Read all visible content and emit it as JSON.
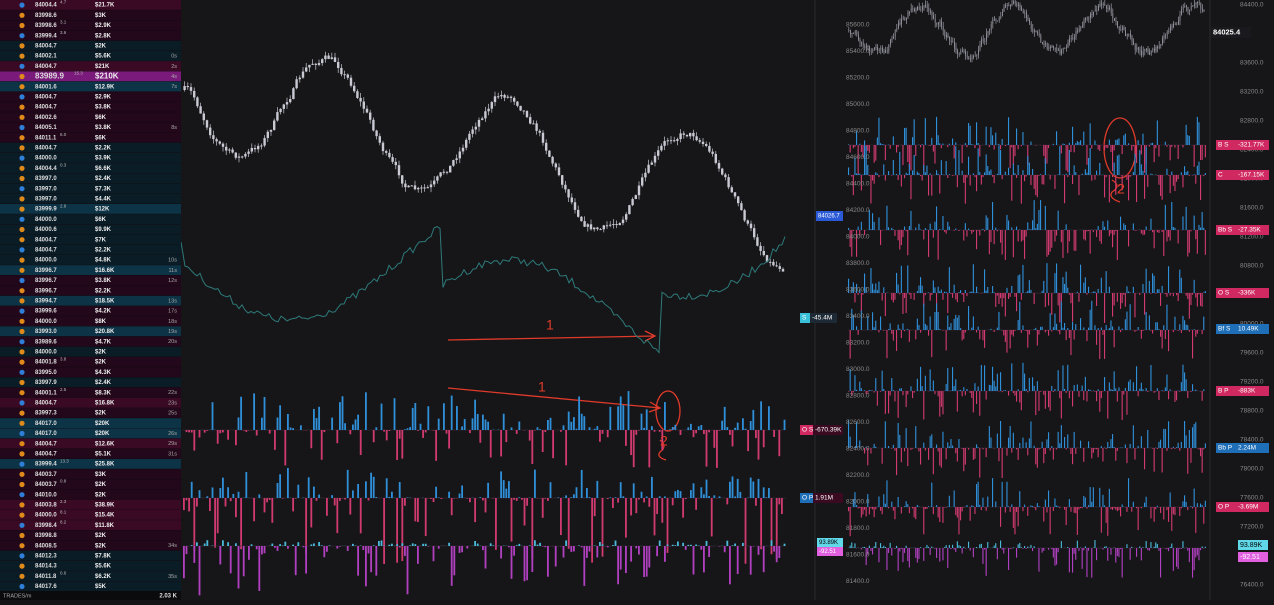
{
  "trades": {
    "rows": [
      [
        "84004.4",
        "4.7",
        "$21.7K",
        null,
        "#3a0a24"
      ],
      [
        "83998.6",
        null,
        "$3K",
        null,
        "#22081a"
      ],
      [
        "83998.6",
        "3.1",
        "$2.9K",
        null,
        "#22081a"
      ],
      [
        "83999.4",
        "3.6",
        "$2.8K",
        null,
        "#22081a"
      ],
      [
        "84004.7",
        null,
        "$2K",
        null,
        "#0a1c26"
      ],
      [
        "84002.1",
        null,
        "$5.6K",
        "0s",
        "#0a1c26"
      ],
      [
        "84004.7",
        null,
        "$21K",
        "2s",
        "#3a0a24"
      ],
      [
        "83989.9",
        "15.3",
        "$210K",
        "4s",
        "#7a1a7a"
      ],
      [
        "84001.6",
        null,
        "$12.9K",
        "7s",
        "#0c3346"
      ],
      [
        "84004.7",
        null,
        "$2.9K",
        null,
        "#22081a"
      ],
      [
        "84004.7",
        null,
        "$3.8K",
        null,
        "#22081a"
      ],
      [
        "84002.6",
        null,
        "$6K",
        null,
        "#22081a"
      ],
      [
        "84005.1",
        null,
        "$3.8K",
        "8s",
        "#22081a"
      ],
      [
        "84011.1",
        "6.0",
        "$6K",
        null,
        "#22081a"
      ],
      [
        "84004.7",
        null,
        "$2.2K",
        null,
        "#0a1c26"
      ],
      [
        "84000.0",
        null,
        "$3.9K",
        null,
        "#0a1c26"
      ],
      [
        "84004.4",
        "0.3",
        "$6.6K",
        null,
        "#0a1c26"
      ],
      [
        "83997.0",
        null,
        "$2.4K",
        null,
        "#0a1c26"
      ],
      [
        "83997.0",
        null,
        "$7.3K",
        null,
        "#0a1c26"
      ],
      [
        "83997.0",
        null,
        "$4.4K",
        null,
        "#0a1c26"
      ],
      [
        "83999.9",
        "2.9",
        "$12K",
        null,
        "#0c3346"
      ],
      [
        "84000.0",
        null,
        "$6K",
        null,
        "#0a1c26"
      ],
      [
        "84000.6",
        null,
        "$9.9K",
        null,
        "#0a1c26"
      ],
      [
        "84004.7",
        null,
        "$7K",
        null,
        "#0a1c26"
      ],
      [
        "84004.7",
        null,
        "$2.2K",
        null,
        "#0a1c26"
      ],
      [
        "84000.0",
        null,
        "$4.8K",
        "10s",
        "#0a1c26"
      ],
      [
        "83996.7",
        null,
        "$16.6K",
        "11s",
        "#0c3346"
      ],
      [
        "83996.7",
        null,
        "$3.8K",
        "12s",
        "#22081a"
      ],
      [
        "83996.7",
        null,
        "$2.2K",
        null,
        "#22081a"
      ],
      [
        "83994.7",
        null,
        "$18.5K",
        "13s",
        "#0c3346"
      ],
      [
        "83999.6",
        null,
        "$4.2K",
        "17s",
        "#22081a"
      ],
      [
        "84000.0",
        null,
        "$8K",
        "18s",
        "#22081a"
      ],
      [
        "83993.0",
        null,
        "$20.8K",
        "19s",
        "#0c3346"
      ],
      [
        "83989.6",
        null,
        "$4.7K",
        "20s",
        "#22081a"
      ],
      [
        "84000.0",
        null,
        "$2K",
        null,
        "#0a1c26"
      ],
      [
        "84001.8",
        "3.8",
        "$2K",
        null,
        "#22081a"
      ],
      [
        "83995.0",
        null,
        "$4.3K",
        null,
        "#22081a"
      ],
      [
        "83997.9",
        null,
        "$2.4K",
        null,
        "#0a1c26"
      ],
      [
        "84001.1",
        "2.5",
        "$8.3K",
        "22s",
        "#22081a"
      ],
      [
        "84004.7",
        null,
        "$16.8K",
        "23s",
        "#3a0a24"
      ],
      [
        "83997.3",
        null,
        "$2K",
        "25s",
        "#22081a"
      ],
      [
        "84017.0",
        null,
        "$20K",
        null,
        "#0c3346"
      ],
      [
        "84017.0",
        null,
        "$20K",
        "26s",
        "#0c3346"
      ],
      [
        "84004.7",
        null,
        "$12.6K",
        "29s",
        "#3a0a24"
      ],
      [
        "84004.7",
        null,
        "$5.1K",
        "31s",
        "#22081a"
      ],
      [
        "83999.4",
        "13.3",
        "$25.8K",
        null,
        "#0c3346"
      ],
      [
        "84003.7",
        null,
        "$3K",
        null,
        "#22081a"
      ],
      [
        "84003.7",
        "0.8",
        "$2K",
        null,
        "#22081a"
      ],
      [
        "84010.0",
        null,
        "$2K",
        null,
        "#22081a"
      ],
      [
        "84003.8",
        "2.3",
        "$38.9K",
        null,
        "#3a0a24"
      ],
      [
        "84000.0",
        "8.1",
        "$15.4K",
        null,
        "#3a0a24"
      ],
      [
        "83998.4",
        "8.2",
        "$11.8K",
        null,
        "#3a0a24"
      ],
      [
        "83998.8",
        null,
        "$2K",
        null,
        "#22081a"
      ],
      [
        "84008.5",
        null,
        "$2K",
        "34s",
        "#22081a"
      ],
      [
        "84012.3",
        null,
        "$7.8K",
        null,
        "#0a1c26"
      ],
      [
        "84014.3",
        null,
        "$5.6K",
        null,
        "#0a1c26"
      ],
      [
        "84011.8",
        "0.6",
        "$6.2K",
        "35s",
        "#0a1c26"
      ],
      [
        "84017.6",
        null,
        "$5K",
        null,
        "#0a1c26"
      ]
    ],
    "footer_label": "TRADES/m",
    "footer_value": "2.03 K"
  },
  "main_chart": {
    "price_tag": "84026.7",
    "tags": [
      {
        "label": "S",
        "value": "-45.4M",
        "color": "#38c0d8"
      },
      {
        "label": "O S",
        "value": "-670.39K",
        "color": "#d02860"
      },
      {
        "label": "O P",
        "value": "1.91M",
        "color": "#1f6fb8"
      }
    ],
    "cvd_tags": [
      "93.89K",
      "-92.51"
    ],
    "annotations": [
      "1",
      "1",
      "2",
      "2"
    ]
  },
  "right_chart": {
    "price_tag": "84025.4",
    "price_axis": [
      "85600.0",
      "85400.0",
      "85200.0",
      "85000.0",
      "84800.0",
      "84600.0",
      "84400.0",
      "84200.0",
      "84000.0",
      "83800.0",
      "83600.0",
      "83400.0",
      "83200.0",
      "83000.0",
      "82800.0",
      "82600.0",
      "82400.0",
      "82200.0",
      "82000.0",
      "81800.0",
      "81600.0",
      "81400.0"
    ],
    "outer_axis": [
      "84400.0",
      "83600.0",
      "83200.0",
      "82800.0",
      "82400.0",
      "82000.0",
      "81600.0",
      "81200.0",
      "80800.0",
      "80400.0",
      "80000.0",
      "79600.0",
      "79200.0",
      "78800.0",
      "78400.0",
      "78000.0",
      "77600.0",
      "77200.0",
      "76800.0",
      "76400.0"
    ],
    "tags": [
      {
        "label": "B S",
        "value": "-321.77K",
        "color": "#d02860"
      },
      {
        "label": "C",
        "value": "-167.15K",
        "color": "#d02860"
      },
      {
        "label": "Bb S",
        "value": "-27.35K",
        "color": "#d02860"
      },
      {
        "label": "O S",
        "value": "-336K",
        "color": "#d02860"
      },
      {
        "label": "Bf S",
        "value": "10.49K",
        "color": "#1f6fb8"
      },
      {
        "label": "B P",
        "value": "-883K",
        "color": "#d02860"
      },
      {
        "label": "Bb P",
        "value": "2.24M",
        "color": "#1f6fb8"
      },
      {
        "label": "O P",
        "value": "-3.69M",
        "color": "#d02860"
      }
    ],
    "cvd_tags": [
      "93.89K",
      "-92.51"
    ],
    "annotations": [
      "2"
    ]
  }
}
